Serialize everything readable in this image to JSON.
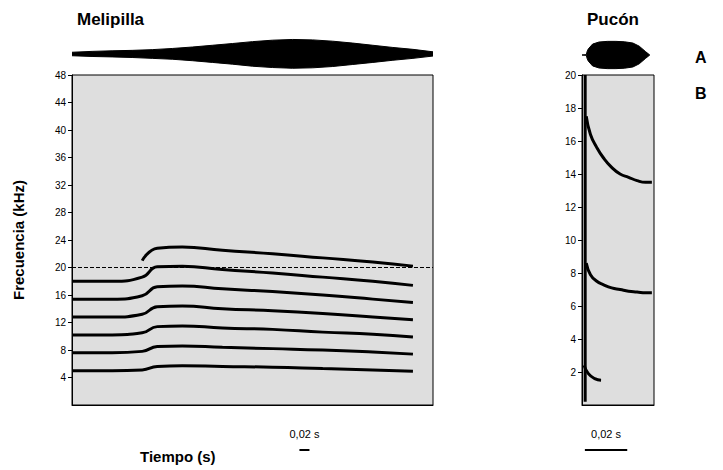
{
  "chart_data": [
    {
      "type": "spectrogram",
      "title": "Melipilla",
      "ylabel": "Frecuencia (kHz)",
      "xlabel": "Tiempo (s)",
      "xlim": [
        0,
        0.72
      ],
      "ylim": [
        0,
        48
      ],
      "yticks": [
        4,
        8,
        12,
        16,
        20,
        24,
        28,
        32,
        36,
        40,
        44,
        48
      ],
      "tick_labels": "y",
      "grid": false,
      "color": "#000000",
      "waveform": {
        "x": [
          0,
          0.04,
          0.08,
          0.12,
          0.16,
          0.2,
          0.24,
          0.28,
          0.32,
          0.36,
          0.4,
          0.44,
          0.48,
          0.52,
          0.56,
          0.6,
          0.64,
          0.68,
          0.72
        ],
        "upper": [
          0.12,
          0.18,
          0.22,
          0.25,
          0.3,
          0.38,
          0.48,
          0.6,
          0.72,
          0.85,
          0.95,
          1.0,
          0.97,
          0.88,
          0.75,
          0.6,
          0.45,
          0.32,
          0.15
        ],
        "lower": [
          -0.12,
          -0.17,
          -0.2,
          -0.24,
          -0.3,
          -0.36,
          -0.46,
          -0.58,
          -0.7,
          -0.84,
          -0.93,
          -0.98,
          -0.95,
          -0.86,
          -0.72,
          -0.58,
          -0.43,
          -0.3,
          -0.14
        ],
        "ylim": [
          -1.1,
          1.1
        ]
      },
      "reference_line": {
        "value": 20,
        "line_style": "dashed"
      },
      "scale_bar": {
        "value": 0.02,
        "label": "0,02 s"
      },
      "series": [
        {
          "type": "line",
          "x": [
            0,
            0.08,
            0.14,
            0.17,
            0.22,
            0.3,
            0.4,
            0.5,
            0.6,
            0.68
          ],
          "values": [
            5.0,
            5.0,
            5.1,
            5.6,
            5.7,
            5.6,
            5.5,
            5.3,
            5.1,
            4.9
          ]
        },
        {
          "type": "line",
          "x": [
            0,
            0.08,
            0.14,
            0.17,
            0.22,
            0.3,
            0.4,
            0.5,
            0.6,
            0.68
          ],
          "values": [
            7.6,
            7.6,
            7.8,
            8.5,
            8.6,
            8.4,
            8.2,
            8.0,
            7.7,
            7.4
          ]
        },
        {
          "type": "line",
          "x": [
            0,
            0.08,
            0.14,
            0.17,
            0.22,
            0.3,
            0.4,
            0.5,
            0.6,
            0.68
          ],
          "values": [
            10.2,
            10.2,
            10.5,
            11.4,
            11.5,
            11.2,
            11.0,
            10.6,
            10.3,
            9.9
          ]
        },
        {
          "type": "line",
          "x": [
            0,
            0.08,
            0.14,
            0.17,
            0.22,
            0.3,
            0.4,
            0.5,
            0.6,
            0.68
          ],
          "values": [
            12.8,
            12.8,
            13.2,
            14.3,
            14.4,
            14.0,
            13.7,
            13.3,
            12.8,
            12.4
          ]
        },
        {
          "type": "line",
          "x": [
            0,
            0.08,
            0.14,
            0.17,
            0.22,
            0.3,
            0.4,
            0.5,
            0.6,
            0.68
          ],
          "values": [
            15.4,
            15.4,
            15.9,
            17.2,
            17.3,
            16.9,
            16.5,
            16.0,
            15.4,
            14.9
          ]
        },
        {
          "type": "line",
          "x": [
            0,
            0.08,
            0.14,
            0.17,
            0.22,
            0.3,
            0.4,
            0.5,
            0.6,
            0.68
          ],
          "values": [
            18.0,
            18.0,
            18.6,
            20.1,
            20.2,
            19.7,
            19.2,
            18.6,
            18.0,
            17.4
          ]
        },
        {
          "type": "line",
          "x": [
            0,
            0.08,
            0.14,
            0.17,
            0.22,
            0.3,
            0.4,
            0.5,
            0.6,
            0.68
          ],
          "values": [
            null,
            null,
            21.0,
            22.8,
            23.0,
            22.5,
            22.0,
            21.4,
            20.8,
            20.2
          ]
        }
      ]
    },
    {
      "type": "spectrogram",
      "title": "Pucón",
      "annotations": [
        "A",
        "B"
      ],
      "xlim": [
        0,
        0.034
      ],
      "ylim": [
        0,
        20
      ],
      "yticks": [
        2,
        4,
        6,
        8,
        10,
        12,
        14,
        16,
        18,
        20
      ],
      "tick_labels": "y",
      "grid": false,
      "color": "#000000",
      "waveform": {
        "x": [
          0,
          0.002,
          0.0025,
          0.003,
          0.005,
          0.008,
          0.012,
          0.016,
          0.02,
          0.024,
          0.027,
          0.03,
          0.032
        ],
        "upper": [
          0,
          0.02,
          0.3,
          0.45,
          0.8,
          0.95,
          1.0,
          1.0,
          0.97,
          0.88,
          0.65,
          0.25,
          0
        ],
        "lower": [
          0,
          -0.02,
          -0.3,
          -0.45,
          -0.8,
          -0.95,
          -1.0,
          -1.0,
          -0.97,
          -0.88,
          -0.65,
          -0.25,
          0
        ],
        "ylim": [
          -1.1,
          1.1
        ]
      },
      "scale_bar": {
        "value": 0.02,
        "label": "0,02 s"
      },
      "series": [
        {
          "type": "line",
          "x": [
            0.0015,
            0.0015
          ],
          "values": [
            0.2,
            20
          ]
        },
        {
          "type": "line",
          "x": [
            0.001,
            0.003,
            0.006,
            0.009
          ],
          "values": [
            2.4,
            1.9,
            1.6,
            1.5
          ]
        },
        {
          "type": "line",
          "x": [
            0.002,
            0.004,
            0.007,
            0.01,
            0.014,
            0.018,
            0.022,
            0.026,
            0.03,
            0.033
          ],
          "values": [
            8.6,
            7.9,
            7.5,
            7.3,
            7.1,
            7.0,
            6.9,
            6.85,
            6.8,
            6.8
          ]
        },
        {
          "type": "line",
          "x": [
            0.002,
            0.004,
            0.007,
            0.01,
            0.014,
            0.018,
            0.022,
            0.026,
            0.03,
            0.033
          ],
          "values": [
            17.5,
            16.4,
            15.6,
            15.0,
            14.4,
            14.0,
            13.8,
            13.6,
            13.5,
            13.5
          ]
        }
      ]
    }
  ]
}
